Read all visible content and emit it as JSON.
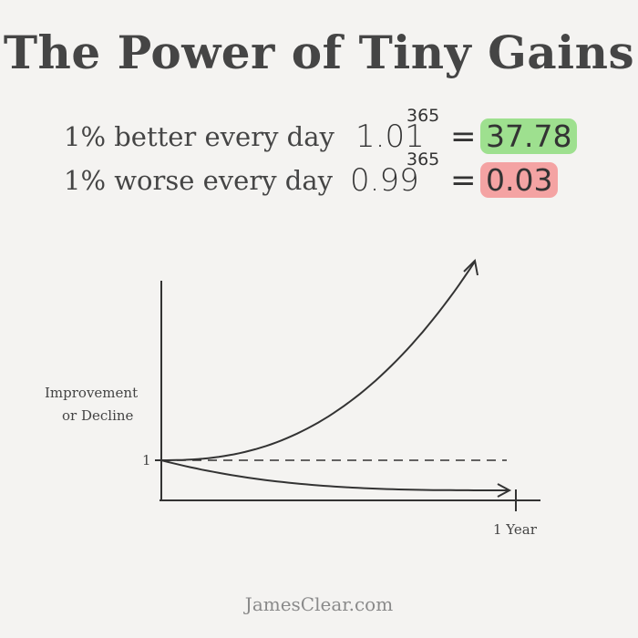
{
  "title": "The Power of Tiny Gains",
  "equations": [
    {
      "label": "1% better every day",
      "base": "1.01",
      "exponent": "365",
      "equals": "=",
      "result": "37.78",
      "highlight": "#9ee08f"
    },
    {
      "label": "1% worse every day",
      "base": "0.99",
      "exponent": "365",
      "equals": "=",
      "result": "0.03",
      "highlight": "#f4a3a3"
    }
  ],
  "chart_data": {
    "type": "line",
    "ylabel_line1": "Improvement",
    "ylabel_line2": "or Decline",
    "y_tick": "1",
    "x_tick": "1 Year",
    "x_range_days": [
      0,
      365
    ],
    "baseline": 1,
    "series": [
      {
        "rate": 1.01,
        "start": 1,
        "end": 37.78,
        "style": "solid-arrow"
      },
      {
        "rate": 0.99,
        "start": 1,
        "end": 0.03,
        "style": "solid-arrow"
      },
      {
        "rate": 1.0,
        "start": 1,
        "end": 1,
        "style": "dashed"
      }
    ],
    "grid": false
  },
  "footer": "JamesClear.com"
}
